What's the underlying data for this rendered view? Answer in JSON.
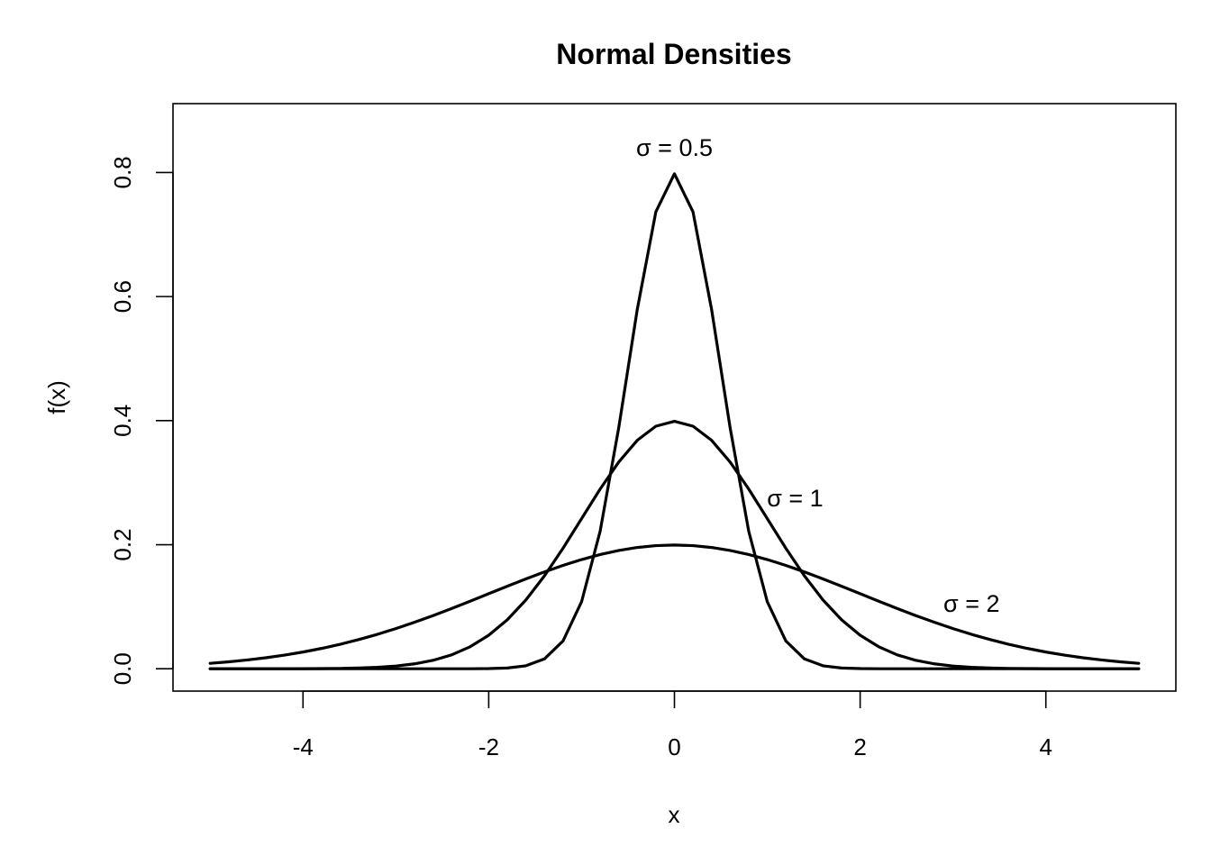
{
  "chart_data": {
    "type": "line",
    "title": "Normal Densities",
    "xlabel": "x",
    "ylabel": "f(x)",
    "xlim": [
      -5.4,
      5.4
    ],
    "ylim": [
      -0.036,
      0.911
    ],
    "x_ticks": [
      {
        "value": -4,
        "label": "-4"
      },
      {
        "value": -2,
        "label": "-2"
      },
      {
        "value": 0,
        "label": "0"
      },
      {
        "value": 2,
        "label": "2"
      },
      {
        "value": 4,
        "label": "4"
      }
    ],
    "y_ticks": [
      {
        "value": 0.0,
        "label": "0.0"
      },
      {
        "value": 0.2,
        "label": "0.2"
      },
      {
        "value": 0.4,
        "label": "0.4"
      },
      {
        "value": 0.6,
        "label": "0.6"
      },
      {
        "value": 0.8,
        "label": "0.8"
      }
    ],
    "x_range": [
      -5,
      5
    ],
    "sample_count": 51,
    "series": [
      {
        "mean": 0,
        "sd": 0.5,
        "color": "#000000"
      },
      {
        "mean": 0,
        "sd": 1,
        "color": "#000000"
      },
      {
        "mean": 0,
        "sd": 2,
        "color": "#000000"
      }
    ],
    "annotations": [
      {
        "label": "σ = 0.5",
        "x": 0,
        "y": 0.84
      },
      {
        "label": "σ = 1",
        "x": 1.3,
        "y": 0.275
      },
      {
        "label": "σ = 2",
        "x": 3.2,
        "y": 0.105
      }
    ],
    "grid": false,
    "legend": "none"
  }
}
